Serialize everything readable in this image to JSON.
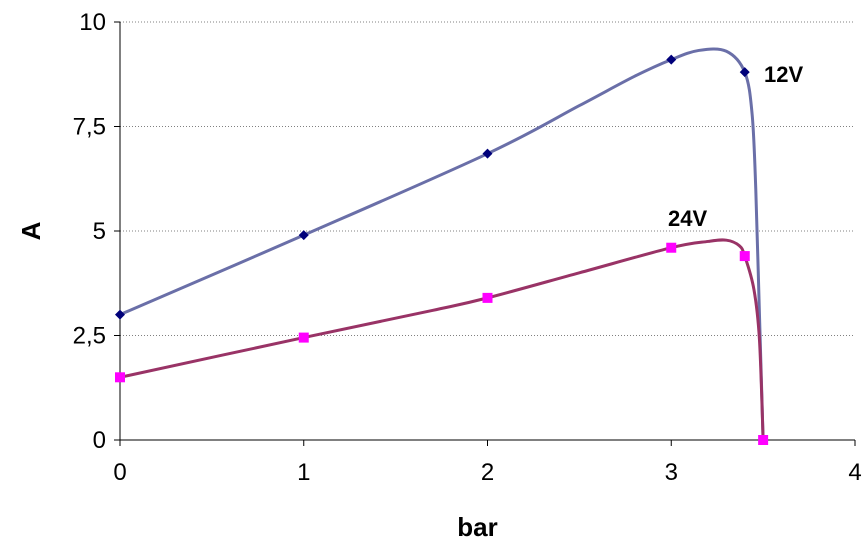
{
  "chart_data": {
    "type": "line",
    "xlabel": "bar",
    "ylabel": "A",
    "xlim": [
      0,
      4
    ],
    "ylim": [
      0,
      10
    ],
    "x_ticks": [
      "0",
      "1",
      "2",
      "3",
      "4"
    ],
    "y_ticks": [
      "0",
      "2,5",
      "5",
      "7,5",
      "10"
    ],
    "grid": "horizontal dotted",
    "legend": "none",
    "series": [
      {
        "name": "12V",
        "color": "#6a6fa8",
        "marker": "diamond",
        "marker_color": "#00007a",
        "points": [
          [
            0,
            3.0
          ],
          [
            1,
            4.9
          ],
          [
            2,
            6.85
          ],
          [
            3,
            9.1
          ],
          [
            3.4,
            8.8
          ]
        ],
        "curve": [
          [
            0,
            3.0
          ],
          [
            1,
            4.9
          ],
          [
            2,
            6.85
          ],
          [
            2.5,
            8.0
          ],
          [
            2.8,
            8.7
          ],
          [
            3,
            9.1
          ],
          [
            3.15,
            9.32
          ],
          [
            3.3,
            9.3
          ],
          [
            3.4,
            8.8
          ],
          [
            3.44,
            7.8
          ],
          [
            3.46,
            6.0
          ],
          [
            3.48,
            3.0
          ],
          [
            3.5,
            0
          ]
        ]
      },
      {
        "name": "24V",
        "color": "#993366",
        "marker": "square",
        "marker_color": "#ff00ff",
        "points": [
          [
            0,
            1.5
          ],
          [
            1,
            2.45
          ],
          [
            2,
            3.4
          ],
          [
            3,
            4.6
          ],
          [
            3.4,
            4.4
          ],
          [
            3.5,
            0
          ]
        ],
        "curve": [
          [
            0,
            1.5
          ],
          [
            1,
            2.45
          ],
          [
            1.7,
            3.1
          ],
          [
            2,
            3.4
          ],
          [
            2.5,
            4.0
          ],
          [
            3,
            4.6
          ],
          [
            3.2,
            4.75
          ],
          [
            3.3,
            4.78
          ],
          [
            3.37,
            4.65
          ],
          [
            3.4,
            4.4
          ],
          [
            3.45,
            3.6
          ],
          [
            3.48,
            2.4
          ],
          [
            3.5,
            0
          ]
        ]
      }
    ]
  }
}
